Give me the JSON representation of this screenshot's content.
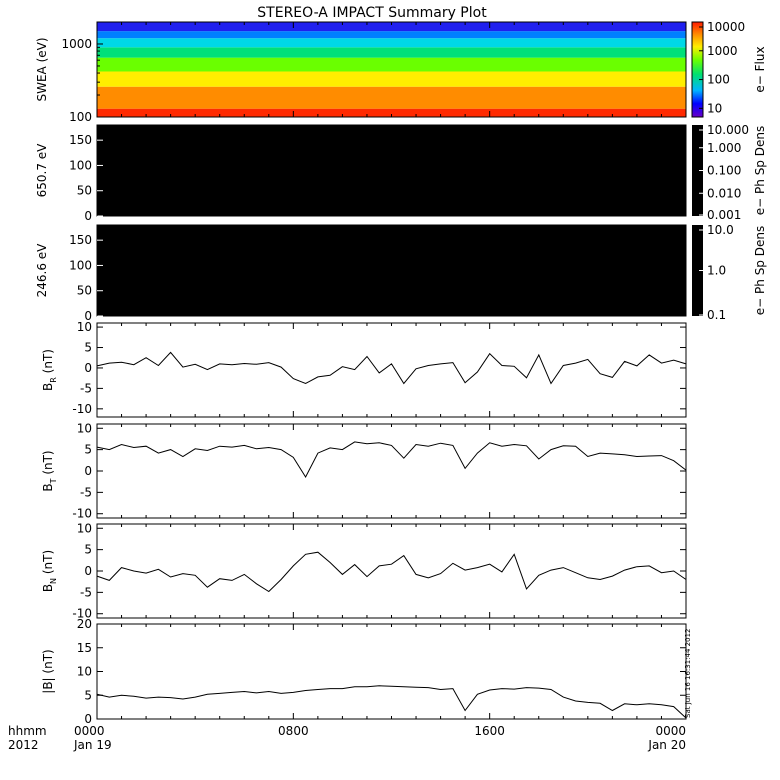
{
  "title": "STEREO-A IMPACT Summary Plot",
  "footer": {
    "row1_label": "hhmm",
    "row2_label": "2012",
    "date_start": "Jan 19",
    "date_end": "Jan 20",
    "timestamp": "Sat Jun 16 16:31:44 2012"
  },
  "colors": {
    "line": "#000000",
    "spectrogram_empty": "#000000",
    "frame": "#000000"
  },
  "chart_data": [
    {
      "type": "heatmap",
      "name": "swea",
      "ylabel": "SWEA (eV)",
      "yscale": "log",
      "ylim": [
        100,
        2000
      ],
      "yticks": [
        "100",
        "1000"
      ],
      "colorbar": {
        "label": "e− Flux",
        "scale": "log",
        "range": [
          5,
          10000
        ],
        "ticks": [
          "10",
          "100",
          "1000",
          "10000"
        ],
        "colormap": "rainbow"
      },
      "description_bands": [
        {
          "energy_from": 100,
          "energy_to": 130,
          "color": "#ff2a00"
        },
        {
          "energy_from": 130,
          "energy_to": 260,
          "color": "#ff8c00"
        },
        {
          "energy_from": 260,
          "energy_to": 420,
          "color": "#ffee00"
        },
        {
          "energy_from": 420,
          "energy_to": 650,
          "color": "#6aff00"
        },
        {
          "energy_from": 650,
          "energy_to": 900,
          "color": "#00e07a"
        },
        {
          "energy_from": 900,
          "energy_to": 1200,
          "color": "#00d8e8"
        },
        {
          "energy_from": 1200,
          "energy_to": 1500,
          "color": "#0080ff"
        },
        {
          "energy_from": 1500,
          "energy_to": 2000,
          "color": "#2020ee"
        }
      ]
    },
    {
      "type": "heatmap",
      "name": "pad_650",
      "ylabel": "650.7 eV",
      "ylim": [
        0,
        180
      ],
      "yticks": [
        "0",
        "50",
        "100",
        "150"
      ],
      "colorbar": {
        "label": "e− Ph Sp Dens",
        "scale": "log",
        "range": [
          0.001,
          10
        ],
        "ticks": [
          "10.000",
          "1.000",
          "0.100",
          "0.010",
          "0.001"
        ],
        "colormap": "black"
      },
      "fill": "empty"
    },
    {
      "type": "heatmap",
      "name": "pad_246",
      "ylabel": "246.6 eV",
      "ylim": [
        0,
        180
      ],
      "yticks": [
        "0",
        "50",
        "100",
        "150"
      ],
      "colorbar": {
        "label": "e− Ph Sp Dens",
        "scale": "log",
        "range": [
          0.1,
          10
        ],
        "ticks": [
          "10.0",
          "1.0",
          "0.1"
        ],
        "colormap": "black"
      },
      "fill": "empty"
    },
    {
      "type": "line",
      "name": "br",
      "ylabel": "B",
      "ylabel_sub": "R",
      "ylabel_unit": "(nT)",
      "ylim": [
        -12,
        11
      ],
      "yticks": [
        "-10",
        "-5",
        "0",
        "5",
        "10"
      ],
      "x": [
        0,
        0.5,
        1,
        1.5,
        2,
        2.5,
        3,
        3.5,
        4,
        4.5,
        5,
        5.5,
        6,
        6.5,
        7,
        7.5,
        8,
        8.5,
        9,
        9.5,
        10,
        10.5,
        11,
        11.5,
        12,
        12.5,
        13,
        13.5,
        14,
        14.5,
        15,
        15.5,
        16,
        16.5,
        17,
        17.5,
        18,
        18.5,
        19,
        19.5,
        20,
        20.5,
        21,
        21.5,
        22,
        22.5,
        23,
        23.5,
        24
      ],
      "values": [
        0.5,
        1.2,
        1.4,
        0.8,
        2.5,
        0.6,
        3.8,
        0.2,
        0.9,
        -0.4,
        1.0,
        0.8,
        1.1,
        0.9,
        1.3,
        0.2,
        -2.6,
        -3.8,
        -2.2,
        -1.8,
        0.3,
        -0.4,
        2.8,
        -1.2,
        1.0,
        -3.8,
        -0.2,
        0.6,
        1.0,
        1.3,
        -3.6,
        -1.0,
        3.5,
        0.6,
        0.4,
        -2.4,
        3.2,
        -3.8,
        0.6,
        1.2,
        2.1,
        -1.4,
        -2.3,
        1.6,
        0.5,
        3.2,
        1.2,
        1.9,
        1.0
      ]
    },
    {
      "type": "line",
      "name": "bt",
      "ylabel": "B",
      "ylabel_sub": "T",
      "ylabel_unit": "(nT)",
      "ylim": [
        -11,
        11
      ],
      "yticks": [
        "-10",
        "-5",
        "0",
        "5",
        "10"
      ],
      "x": [
        0,
        0.5,
        1,
        1.5,
        2,
        2.5,
        3,
        3.5,
        4,
        4.5,
        5,
        5.5,
        6,
        6.5,
        7,
        7.5,
        8,
        8.5,
        9,
        9.5,
        10,
        10.5,
        11,
        11.5,
        12,
        12.5,
        13,
        13.5,
        14,
        14.5,
        15,
        15.5,
        16,
        16.5,
        17,
        17.5,
        18,
        18.5,
        19,
        19.5,
        20,
        20.5,
        21,
        21.5,
        22,
        22.5,
        23,
        23.5,
        24
      ],
      "values": [
        5.6,
        5.0,
        6.2,
        5.5,
        5.8,
        4.2,
        5.0,
        3.4,
        5.2,
        4.8,
        5.8,
        5.6,
        6.0,
        5.2,
        5.5,
        5.0,
        3.2,
        -1.4,
        4.2,
        5.4,
        5.0,
        6.8,
        6.4,
        6.6,
        6.0,
        3.0,
        6.2,
        5.8,
        6.5,
        6.0,
        0.6,
        4.2,
        6.6,
        5.8,
        6.2,
        5.9,
        2.8,
        5.0,
        5.9,
        5.8,
        3.4,
        4.2,
        4.0,
        3.8,
        3.4,
        3.5,
        3.6,
        2.4,
        0.2
      ]
    },
    {
      "type": "line",
      "name": "bn",
      "ylabel": "B",
      "ylabel_sub": "N",
      "ylabel_unit": "(nT)",
      "ylim": [
        -11,
        11
      ],
      "yticks": [
        "-10",
        "-5",
        "0",
        "5",
        "10"
      ],
      "x": [
        0,
        0.5,
        1,
        1.5,
        2,
        2.5,
        3,
        3.5,
        4,
        4.5,
        5,
        5.5,
        6,
        6.5,
        7,
        7.5,
        8,
        8.5,
        9,
        9.5,
        10,
        10.5,
        11,
        11.5,
        12,
        12.5,
        13,
        13.5,
        14,
        14.5,
        15,
        15.5,
        16,
        16.5,
        17,
        17.5,
        18,
        18.5,
        19,
        19.5,
        20,
        20.5,
        21,
        21.5,
        22,
        22.5,
        23,
        23.5,
        24
      ],
      "values": [
        -1.2,
        -2.2,
        0.8,
        0.0,
        -0.5,
        0.4,
        -1.4,
        -0.6,
        -1.0,
        -3.8,
        -1.8,
        -2.2,
        -0.8,
        -3.0,
        -4.8,
        -2.0,
        1.2,
        3.9,
        4.4,
        2.0,
        -0.8,
        1.5,
        -1.3,
        1.2,
        1.6,
        3.6,
        -0.8,
        -1.6,
        -0.6,
        1.8,
        0.2,
        0.8,
        1.6,
        -0.2,
        3.9,
        -4.2,
        -1.0,
        0.2,
        0.8,
        -0.4,
        -1.6,
        -2.0,
        -1.2,
        0.2,
        1.0,
        1.2,
        -0.4,
        0.0,
        -2.0
      ]
    },
    {
      "type": "line",
      "name": "bmag",
      "ylabel": "|B| (nT)",
      "ylim": [
        0,
        20
      ],
      "yticks": [
        "0",
        "5",
        "10",
        "15",
        "20"
      ],
      "x": [
        0,
        0.5,
        1,
        1.5,
        2,
        2.5,
        3,
        3.5,
        4,
        4.5,
        5,
        5.5,
        6,
        6.5,
        7,
        7.5,
        8,
        8.5,
        9,
        9.5,
        10,
        10.5,
        11,
        11.5,
        12,
        12.5,
        13,
        13.5,
        14,
        14.5,
        15,
        15.5,
        16,
        16.5,
        17,
        17.5,
        18,
        18.5,
        19,
        19.5,
        20,
        20.5,
        21,
        21.5,
        22,
        22.5,
        23,
        23.5,
        24
      ],
      "values": [
        5.2,
        4.6,
        5.0,
        4.8,
        4.4,
        4.6,
        4.5,
        4.2,
        4.6,
        5.2,
        5.4,
        5.6,
        5.8,
        5.5,
        5.8,
        5.4,
        5.6,
        6.0,
        6.2,
        6.4,
        6.4,
        6.8,
        6.8,
        7.0,
        6.9,
        6.8,
        6.7,
        6.6,
        6.2,
        6.4,
        1.8,
        5.2,
        6.1,
        6.4,
        6.3,
        6.6,
        6.5,
        6.2,
        4.6,
        3.8,
        3.5,
        3.3,
        1.8,
        3.2,
        3.0,
        3.2,
        3.0,
        2.6,
        0.2
      ]
    }
  ],
  "time_axis": {
    "range_hours": [
      0,
      24
    ],
    "major_ticks": [
      {
        "hour": 0,
        "label": "0000"
      },
      {
        "hour": 8,
        "label": "0800"
      },
      {
        "hour": 16,
        "label": "1600"
      },
      {
        "hour": 24,
        "label": "0000"
      }
    ]
  }
}
